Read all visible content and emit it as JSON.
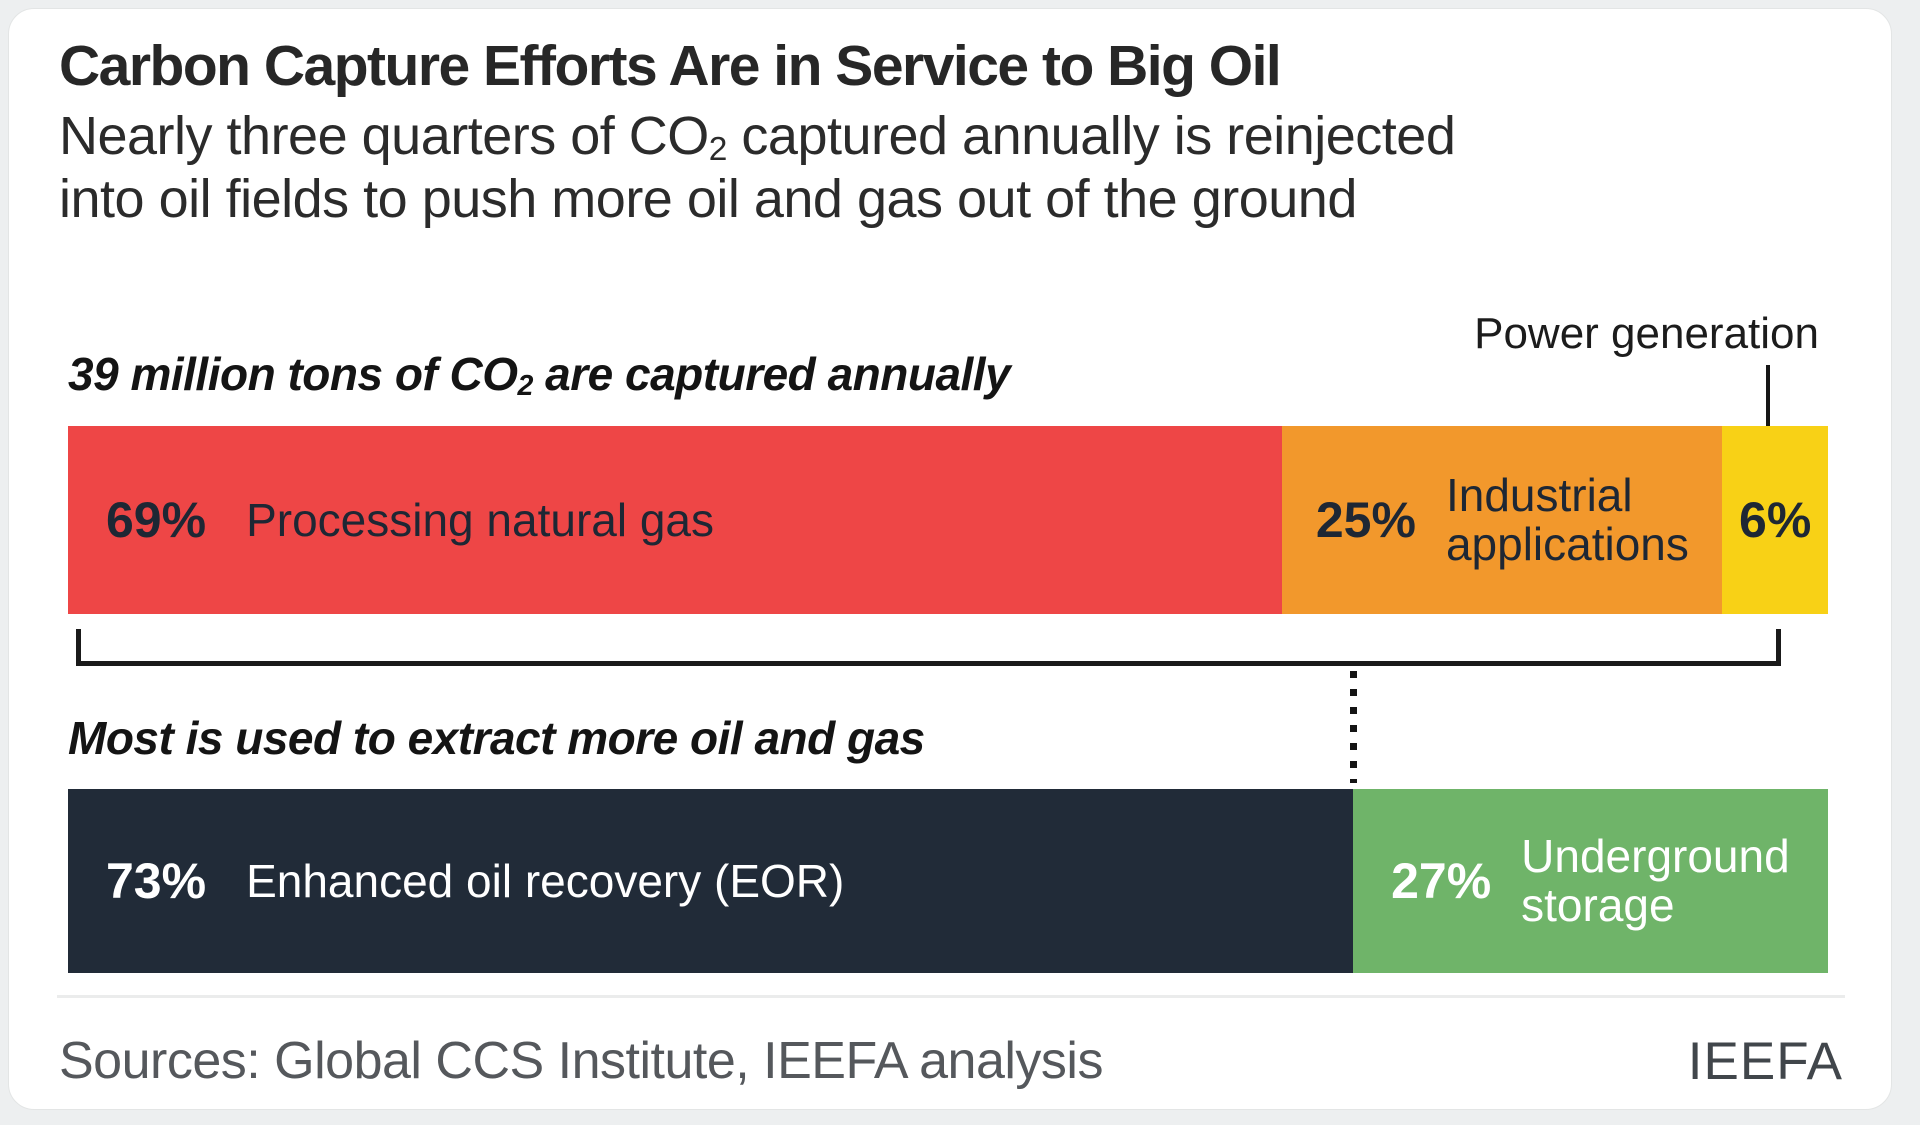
{
  "colors": {
    "red": "#ee4646",
    "orange": "#f2982c",
    "yellow": "#f8d116",
    "navy": "#212b38",
    "green": "#6fb469",
    "bar1_text": "#1e2734",
    "bar2_text": "#ffffff",
    "line_black": "#1a1a1a",
    "sources_text": "#55585c",
    "brand_text": "#41464b"
  },
  "header": {
    "title": "Carbon Capture Efforts Are in Service to Big Oil",
    "subtitle_line1_pre": "Nearly three quarters of CO",
    "subtitle_line1_sub": "2",
    "subtitle_line1_post": " captured annually is reinjected",
    "subtitle_line2": "into oil fields to push more oil and gas out of the ground"
  },
  "bar1": {
    "title_pre": "39 million tons of CO",
    "title_sub": "2",
    "title_post": " are captured annually",
    "callout_label": "Power generation",
    "segments": [
      {
        "pct": "69%",
        "label": "Processing natural gas"
      },
      {
        "pct": "25%",
        "label": "Industrial\napplications"
      },
      {
        "pct": "6%",
        "label": ""
      }
    ]
  },
  "bar2": {
    "title": "Most is used to extract more oil and gas",
    "segments": [
      {
        "pct": "73%",
        "label": "Enhanced oil recovery (EOR)"
      },
      {
        "pct": "27%",
        "label": "Underground\nstorage"
      }
    ]
  },
  "footer": {
    "sources": "Sources: Global CCS Institute, IEEFA analysis",
    "brand": "IEEFA"
  },
  "chart_data": [
    {
      "type": "bar",
      "variant": "horizontal-stacked",
      "title": "39 million tons of CO2 are captured annually",
      "categories": [
        "Processing natural gas",
        "Industrial applications",
        "Power generation"
      ],
      "values": [
        69,
        25,
        6
      ],
      "unit": "percent",
      "xlim": [
        0,
        100
      ],
      "colors": [
        "#ee4646",
        "#f2982c",
        "#f8d116"
      ],
      "annotations": [
        "Power generation label points to the 6% segment"
      ],
      "grid": false,
      "legend": "labels drawn inside segments"
    },
    {
      "type": "bar",
      "variant": "horizontal-stacked",
      "title": "Most is used to extract more oil and gas",
      "categories": [
        "Enhanced oil recovery (EOR)",
        "Underground storage"
      ],
      "values": [
        73,
        27
      ],
      "unit": "percent",
      "xlim": [
        0,
        100
      ],
      "colors": [
        "#212b38",
        "#6fb469"
      ],
      "grid": false,
      "legend": "labels drawn inside segments"
    }
  ]
}
